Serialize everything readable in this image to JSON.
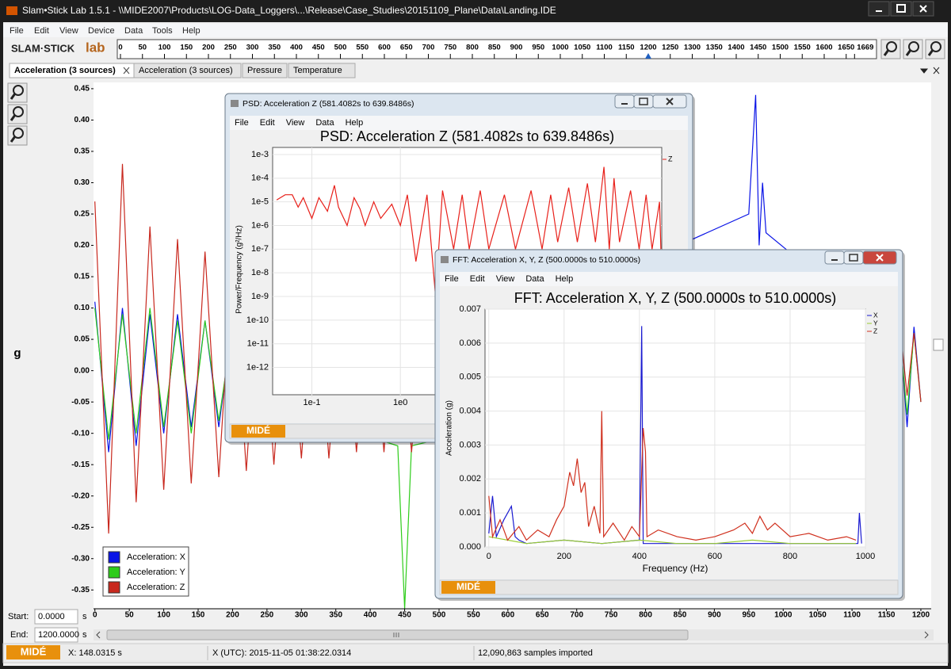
{
  "window": {
    "title": "Slam•Stick Lab 1.5.1 - \\\\MIDE2007\\Products\\LOG-Data_Loggers\\...\\Release\\Case_Studies\\20151109_Plane\\Data\\Landing.IDE",
    "menu": [
      "File",
      "Edit",
      "View",
      "Device",
      "Data",
      "Tools",
      "Help"
    ]
  },
  "logo": {
    "name": "SLAM·STICK",
    "suffix": "lab"
  },
  "ruler": {
    "xlim": [
      0,
      1669
    ],
    "xticks": [
      0,
      50,
      100,
      150,
      200,
      250,
      300,
      350,
      400,
      450,
      500,
      550,
      600,
      650,
      700,
      750,
      800,
      850,
      900,
      950,
      1000,
      1050,
      1100,
      1150,
      1200,
      1250,
      1300,
      1350,
      1400,
      1450,
      1500,
      1550,
      1600,
      1650,
      1669
    ],
    "cursor": 1200
  },
  "tabs": [
    "Acceleration (3 sources)",
    "Acceleration (3 sources)",
    "Pressure",
    "Temperature"
  ],
  "chart_data": [
    {
      "type": "line",
      "ylabel": "g",
      "xlim": [
        -2,
        1215
      ],
      "ylim": [
        -0.38,
        0.46
      ],
      "xticks": [
        0,
        50,
        100,
        150,
        200,
        250,
        300,
        350,
        400,
        450,
        500,
        550,
        600,
        650,
        700,
        750,
        800,
        850,
        900,
        950,
        1000,
        1050,
        1100,
        1150,
        1200
      ],
      "yticks": [
        0.45,
        {
          "value": 0.4,
          "label": "0.40"
        },
        0.35,
        {
          "value": 0.3,
          "label": "0.30"
        },
        0.25,
        {
          "value": 0.2,
          "label": "0.20"
        },
        0.15,
        {
          "value": 0.1,
          "label": "0.10"
        },
        0.05,
        {
          "value": 0,
          "label": "0.00"
        },
        -0.05,
        {
          "value": -0.1,
          "label": "-0.10"
        },
        -0.15,
        {
          "value": -0.2,
          "label": "-0.20"
        },
        -0.25,
        {
          "value": -0.3,
          "label": "-0.30"
        },
        -0.35
      ],
      "grid": false,
      "series": [
        {
          "name": "Acceleration: X",
          "color": "#0a14e6",
          "x": [
            0,
            20,
            40,
            60,
            80,
            100,
            120,
            140,
            160,
            180,
            200,
            220,
            240,
            260,
            280,
            300,
            950,
            960,
            965,
            970,
            975,
            1130,
            1140,
            1150,
            1160,
            1170,
            1180,
            1190,
            1200
          ],
          "values": [
            0.11,
            -0.13,
            0.1,
            -0.12,
            0.09,
            -0.1,
            0.09,
            -0.09,
            0.08,
            -0.09,
            0.08,
            -0.08,
            0.07,
            -0.08,
            0.07,
            -0.07,
            0.25,
            0.44,
            0.2,
            0.3,
            0.22,
            0.08,
            -0.06,
            0.09,
            -0.08,
            0.06,
            -0.09,
            0.07,
            -0.05
          ]
        },
        {
          "name": "Acceleration: Y",
          "color": "#2ecc1a",
          "x": [
            0,
            20,
            40,
            60,
            80,
            100,
            120,
            140,
            160,
            180,
            200,
            220,
            240,
            260,
            280,
            300,
            440,
            450,
            460,
            1130,
            1140,
            1150,
            1160,
            1170,
            1180,
            1190,
            1200
          ],
          "values": [
            0.1,
            -0.11,
            0.09,
            -0.1,
            0.1,
            -0.09,
            0.08,
            -0.1,
            0.08,
            -0.08,
            0.07,
            -0.08,
            0.07,
            -0.07,
            0.07,
            -0.07,
            -0.12,
            -0.38,
            -0.12,
            0.06,
            -0.05,
            0.07,
            -0.06,
            0.05,
            -0.07,
            0.06,
            -0.05
          ]
        },
        {
          "name": "Acceleration: Z",
          "color": "#c8281e",
          "x": [
            0,
            20,
            40,
            60,
            80,
            100,
            120,
            140,
            160,
            180,
            200,
            220,
            240,
            260,
            280,
            300,
            320,
            340,
            360,
            380,
            400,
            420,
            440,
            460,
            480,
            500,
            1130,
            1140,
            1150,
            1160,
            1170,
            1180,
            1190,
            1200
          ],
          "values": [
            0.27,
            -0.26,
            0.33,
            -0.21,
            0.23,
            -0.19,
            0.21,
            -0.18,
            0.19,
            -0.17,
            0.18,
            -0.16,
            0.17,
            -0.15,
            0.16,
            -0.14,
            0.16,
            -0.14,
            0.15,
            -0.13,
            0.15,
            -0.13,
            0.15,
            -0.13,
            0.14,
            -0.12,
            0.06,
            -0.04,
            0.05,
            -0.05,
            0.07,
            -0.04,
            0.06,
            -0.05
          ]
        }
      ]
    },
    {
      "type": "line",
      "title": "PSD: Acceleration Z (581.4082s to 639.8486s)",
      "ylabel": "Power/Frequency (g²/Hz)",
      "xscale": "log",
      "yscale": "log",
      "xlim": [
        0.036,
        900
      ],
      "ylim": [
        7e-14,
        0.002
      ],
      "xticks": [
        {
          "value": 0.1,
          "label": "1e-1"
        },
        {
          "value": 1,
          "label": "1e0"
        }
      ],
      "yticks": [
        {
          "value": 0.001,
          "label": "1e-3"
        },
        {
          "value": 0.0001,
          "label": "1e-4"
        },
        {
          "value": 1e-05,
          "label": "1e-5"
        },
        {
          "value": 1e-06,
          "label": "1e-6"
        },
        {
          "value": 1e-07,
          "label": "1e-7"
        },
        {
          "value": 1e-08,
          "label": "1e-8"
        },
        {
          "value": 1e-09,
          "label": "1e-9"
        },
        {
          "value": 1e-10,
          "label": "1e-10"
        },
        {
          "value": 1e-11,
          "label": "1e-11"
        },
        {
          "value": 1e-12,
          "label": "1e-12"
        }
      ],
      "grid": true,
      "series": [
        {
          "name": "Z",
          "color": "#e8201a",
          "x": [
            0.04,
            0.05,
            0.06,
            0.07,
            0.08,
            0.1,
            0.12,
            0.15,
            0.18,
            0.2,
            0.25,
            0.3,
            0.35,
            0.4,
            0.5,
            0.6,
            0.8,
            1,
            1.2,
            1.5,
            2,
            2.5,
            3,
            4,
            5,
            6,
            8,
            10,
            15,
            20,
            30,
            40,
            50,
            60,
            80,
            100,
            130,
            160,
            200,
            230,
            260,
            300,
            400,
            500,
            600,
            700,
            850,
            880
          ],
          "values": [
            1.2e-05,
            2e-05,
            2e-05,
            6e-06,
            1.5e-05,
            2e-06,
            1.5e-05,
            4e-06,
            5e-05,
            6e-06,
            1e-06,
            1.5e-05,
            5e-06,
            1e-06,
            1e-05,
            2e-06,
            8e-06,
            1e-06,
            2e-05,
            3e-08,
            2e-05,
            1e-09,
            3e-05,
            1e-07,
            2e-05,
            1e-07,
            3e-05,
            1e-07,
            2e-05,
            1e-07,
            3e-05,
            1e-07,
            2e-05,
            2e-07,
            4e-05,
            2e-07,
            6e-05,
            2e-07,
            0.0003,
            1e-07,
            0.0001,
            2e-07,
            3e-05,
            1e-07,
            2e-05,
            1e-07,
            1e-05,
            1e-07
          ]
        }
      ]
    },
    {
      "type": "line",
      "title": "FFT: Acceleration X, Y, Z (500.0000s to 510.0000s)",
      "xlabel": "Frequency (Hz)",
      "ylabel": "Acceleration (g)",
      "xlim": [
        -10,
        1000
      ],
      "ylim": [
        0,
        0.007
      ],
      "xticks": [
        0,
        200,
        400,
        600,
        800,
        1000
      ],
      "yticks": [
        {
          "value": 0,
          "label": "0.000"
        },
        0.001,
        0.002,
        0.003,
        0.004,
        0.005,
        0.006,
        {
          "value": 0.007,
          "label": "0.007"
        }
      ],
      "grid": true,
      "series": [
        {
          "name": "X",
          "color": "#1a1ad0",
          "x": [
            0,
            10,
            20,
            40,
            60,
            70,
            80,
            100,
            200,
            300,
            400,
            406,
            410,
            500,
            700,
            900,
            980,
            984,
            990
          ],
          "values": [
            0.0004,
            0.0015,
            0.0003,
            0.0008,
            0.0012,
            0.0003,
            0.0002,
            0.0001,
            0.0002,
            0.0001,
            0.0002,
            0.0065,
            0.0001,
            0.0001,
            0.0001,
            0.0001,
            0.0001,
            0.001,
            0.0001
          ]
        },
        {
          "name": "Y",
          "color": "#9acd32",
          "x": [
            0,
            100,
            200,
            300,
            400,
            500,
            600,
            700,
            800,
            900,
            975
          ],
          "values": [
            0.0003,
            0.0001,
            0.0002,
            0.0001,
            0.0002,
            0.0001,
            0.0001,
            0.0002,
            0.0001,
            0.0001,
            0.0001
          ]
        },
        {
          "name": "Z",
          "color": "#d0301e",
          "x": [
            0,
            10,
            30,
            50,
            80,
            100,
            130,
            160,
            180,
            200,
            215,
            225,
            235,
            245,
            255,
            265,
            280,
            295,
            300,
            305,
            330,
            360,
            380,
            400,
            410,
            416,
            420,
            450,
            500,
            550,
            600,
            650,
            680,
            700,
            720,
            740,
            760,
            800,
            850,
            900,
            950,
            975
          ],
          "values": [
            0.0015,
            0.0003,
            0.0008,
            0.0002,
            0.0006,
            0.0002,
            0.0005,
            0.0003,
            0.0008,
            0.0012,
            0.0022,
            0.0018,
            0.0026,
            0.0016,
            0.0019,
            0.0006,
            0.0012,
            0.0004,
            0.004,
            0.0003,
            0.0007,
            0.0002,
            0.0006,
            0.0003,
            0.0035,
            0.0028,
            0.0003,
            0.0005,
            0.0003,
            0.0002,
            0.0003,
            0.0005,
            0.0007,
            0.0004,
            0.0009,
            0.0005,
            0.0007,
            0.0003,
            0.0004,
            0.0002,
            0.0003,
            0.0002
          ]
        }
      ]
    }
  ],
  "windows": [
    {
      "title": "PSD: Acceleration Z (581.4082s to 639.8486s)",
      "menu": [
        "File",
        "Edit",
        "View",
        "Data",
        "Help"
      ],
      "logo": "MIDÉ"
    },
    {
      "title": "FFT: Acceleration X, Y, Z (500.0000s to 510.0000s)",
      "menu": [
        "File",
        "Edit",
        "View",
        "Data",
        "Help"
      ],
      "logo": "MIDÉ"
    }
  ],
  "controls": {
    "start_label": "Start:",
    "start_value": "0.0000",
    "start_unit": "s",
    "end_label": "End:",
    "end_value": "1200.0000",
    "end_unit": "s"
  },
  "status": {
    "logo": "MIDÉ",
    "x": "X: 148.0315 s",
    "x_utc": "X (UTC): 2015-11-05 01:38:22.0314",
    "samples": "12,090,863 samples imported"
  }
}
